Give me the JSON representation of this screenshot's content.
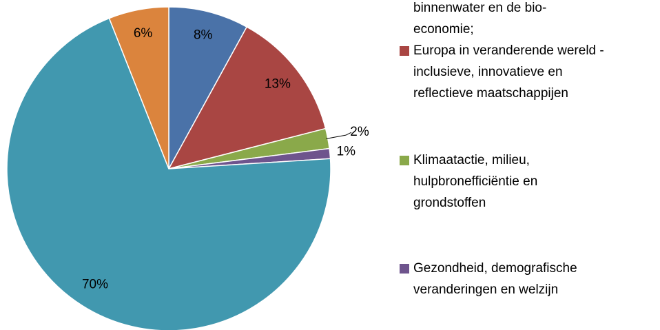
{
  "chart_data": {
    "type": "pie",
    "categories": [
      [
        "binnenwater en de bio-",
        "economie;"
      ],
      [
        "Europa in veranderende wereld -",
        "inclusieve, innovatieve en",
        "reflectieve maatschappijen"
      ],
      [
        "Klimaatactie, milieu,",
        "hulpbronefficiëntie en",
        "grondstoffen"
      ],
      [
        "Gezondheid, demografische",
        "veranderingen en welzijn"
      ],
      null,
      null
    ],
    "values": [
      8,
      13,
      2,
      1,
      70,
      6
    ],
    "value_labels": [
      "8%",
      "13%",
      "2%",
      "1%",
      "70%",
      "6%"
    ],
    "colors": [
      "#4a72a8",
      "#a94643",
      "#8aa94a",
      "#6e548d",
      "#4198af",
      "#db843d"
    ]
  }
}
